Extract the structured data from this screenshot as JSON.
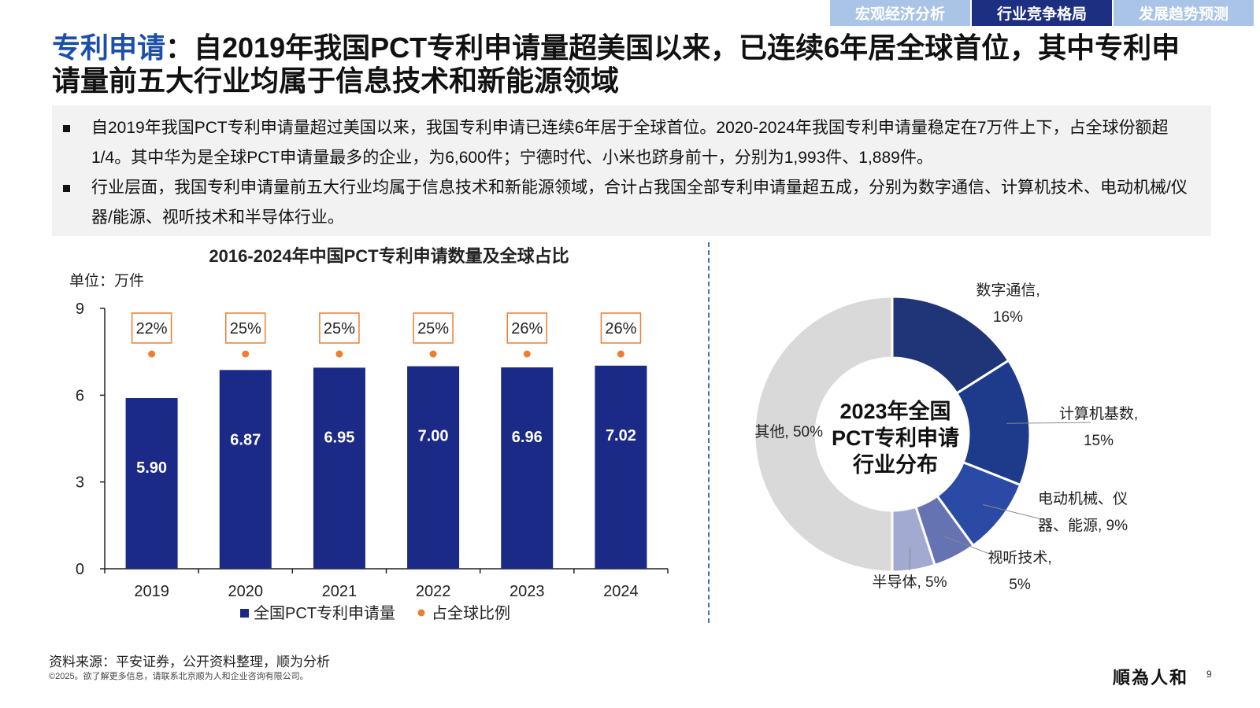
{
  "tabs": [
    {
      "label": "宏观经济分析"
    },
    {
      "label": "行业竞争格局"
    },
    {
      "label": "发展趋势预测"
    }
  ],
  "title": {
    "highlight": "专利申请",
    "text": "：自2019年我国PCT专利申请量超美国以来，已连续6年居全球首位，其中专利申请量前五大行业均属于信息技术和新能源领域"
  },
  "summary": {
    "bullets": [
      "自2019年我国PCT专利申请量超过美国以来，我国专利申请已连续6年居于全球首位。2020-2024年我国专利申请量稳定在7万件上下，占全球份额超1/4。其中华为是全球PCT申请量最多的企业，为6,600件；宁德时代、小米也跻身前十，分别为1,993件、1,889件。",
      "行业层面，我国专利申请量前五大行业均属于信息技术和新能源领域，合计占我国全部专利申请量超五成，分别为数字通信、计算机技术、电动机械/仪器/能源、视听技术和半导体行业。"
    ]
  },
  "chart_data": [
    {
      "type": "bar",
      "title": "2016-2024年中国PCT专利申请数量及全球占比",
      "unit": "单位：万件",
      "categories": [
        "2019",
        "2020",
        "2021",
        "2022",
        "2023",
        "2024"
      ],
      "series": [
        {
          "name": "全国PCT专利申请量",
          "type": "bar",
          "values": [
            5.9,
            6.87,
            6.95,
            7.0,
            6.96,
            7.02
          ],
          "labels": [
            "5.90",
            "6.87",
            "6.95",
            "7.00",
            "6.96",
            "7.02"
          ]
        },
        {
          "name": "占全球比例",
          "type": "scatter",
          "values": [
            22,
            25,
            25,
            25,
            26,
            26
          ],
          "labels": [
            "22%",
            "25%",
            "25%",
            "25%",
            "26%",
            "26%"
          ]
        }
      ],
      "ylim": [
        0,
        9
      ],
      "yticks": [
        "0",
        "3",
        "6",
        "9"
      ],
      "legend_position": "bottom",
      "colors": {
        "bar": "#1b2a87",
        "dot": "#ed7d31",
        "box": "#ed7d31"
      }
    },
    {
      "type": "pie",
      "title_lines": [
        "2023年全国",
        "PCT专利申请",
        "行业分布"
      ],
      "slices": [
        {
          "name": "数字通信",
          "value": 16,
          "label_lines": [
            "数字通信,",
            "16%"
          ],
          "color": "#1f3577"
        },
        {
          "name": "计算机基数",
          "value": 15,
          "label_lines": [
            "计算机基数,",
            "15%"
          ],
          "color": "#1e3a8a"
        },
        {
          "name": "电动机械、仪器、能源",
          "value": 9,
          "label_lines": [
            "电动机械、仪",
            "器、能源, 9%"
          ],
          "color": "#2b4aa6"
        },
        {
          "name": "视听技术",
          "value": 5,
          "label_lines": [
            "视听技术,",
            "5%"
          ],
          "color": "#6673b2"
        },
        {
          "name": "半导体",
          "value": 5,
          "label_lines": [
            "半导体, 5%"
          ],
          "color": "#a3aad2"
        },
        {
          "name": "其他",
          "value": 50,
          "label_lines": [
            "其他, 50%"
          ],
          "color": "#d9d9d9"
        }
      ]
    }
  ],
  "footer": {
    "source": "资料来源：平安证券，公开资料整理，顺为分析",
    "copyright": "©2025。欲了解更多信息，请联系北京顺为人和企业咨询有限公司。",
    "brand": "順為人和",
    "page": "9"
  }
}
